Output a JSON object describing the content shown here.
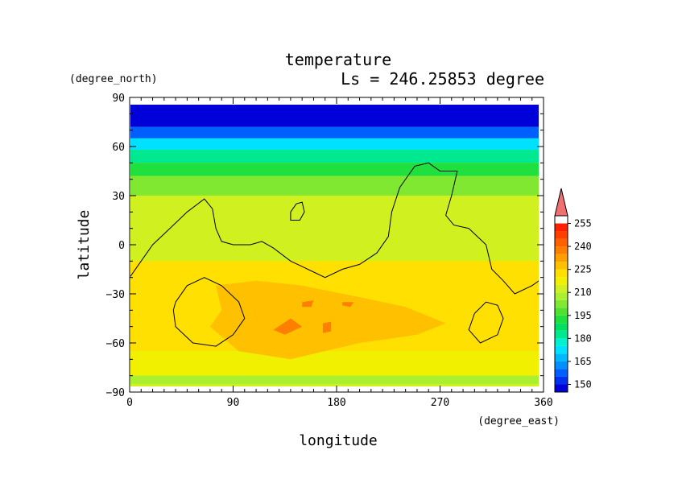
{
  "chart_data": {
    "type": "heatmap",
    "title": "temperature",
    "subtitle": "Ls = 246.25853 degree",
    "xlabel": "longitude",
    "ylabel": "latitude",
    "x_units": "(degree_east)",
    "y_units": "(degree_north)",
    "xlim": [
      0,
      360
    ],
    "ylim": [
      -90,
      90
    ],
    "x_ticks": [
      0,
      90,
      180,
      270,
      360
    ],
    "x_tick_labels": [
      "0",
      "90",
      "180",
      "270",
      "360"
    ],
    "y_ticks": [
      -90,
      -60,
      -30,
      0,
      30,
      60,
      90
    ],
    "y_tick_labels": [
      "−90",
      "−60",
      "−30",
      "0",
      "30",
      "60",
      "90"
    ],
    "colorbar": {
      "levels": [
        145,
        150,
        155,
        160,
        165,
        170,
        175,
        180,
        185,
        190,
        195,
        200,
        205,
        210,
        215,
        220,
        225,
        230,
        235,
        240,
        245,
        250,
        255,
        260
      ],
      "colors": [
        "#0000d8",
        "#0030f0",
        "#0060ff",
        "#0090ff",
        "#00b8ff",
        "#00e0ff",
        "#00f0d0",
        "#00e890",
        "#00e060",
        "#20e040",
        "#50e030",
        "#80e830",
        "#a8f030",
        "#d0f020",
        "#f0f000",
        "#ffe000",
        "#ffc000",
        "#ffa000",
        "#ff8000",
        "#ff6000",
        "#ff4000",
        "#ff2000",
        "#f07070"
      ],
      "tick_labels": [
        "150",
        "165",
        "180",
        "195",
        "210",
        "225",
        "240",
        "255"
      ],
      "tick_values": [
        150,
        165,
        180,
        195,
        210,
        225,
        240,
        255
      ]
    },
    "field_bands": [
      {
        "lat_max": 90,
        "lat_min": 72,
        "value": 148
      },
      {
        "lat_max": 72,
        "lat_min": 65,
        "value": 158
      },
      {
        "lat_max": 65,
        "lat_min": 58,
        "value": 170
      },
      {
        "lat_max": 58,
        "lat_min": 50,
        "value": 182
      },
      {
        "lat_max": 50,
        "lat_min": 42,
        "value": 192
      },
      {
        "lat_max": 42,
        "lat_min": 30,
        "value": 204
      },
      {
        "lat_max": 30,
        "lat_min": -10,
        "value": 212
      },
      {
        "lat_max": -10,
        "lat_min": -65,
        "value": 222
      },
      {
        "lat_max": -65,
        "lat_min": -80,
        "value": 218
      },
      {
        "lat_max": -80,
        "lat_min": -85,
        "value": 208
      }
    ],
    "warm_region": [
      [
        75,
        -25
      ],
      [
        110,
        -22
      ],
      [
        150,
        -25
      ],
      [
        200,
        -32
      ],
      [
        240,
        -38
      ],
      [
        275,
        -48
      ],
      [
        250,
        -55
      ],
      [
        200,
        -60
      ],
      [
        140,
        -70
      ],
      [
        95,
        -65
      ],
      [
        70,
        -50
      ],
      [
        80,
        -40
      ]
    ],
    "warmer_spots": [
      [
        [
          125,
          -52
        ],
        [
          140,
          -45
        ],
        [
          150,
          -50
        ],
        [
          135,
          -55
        ]
      ],
      [
        [
          168,
          -48
        ],
        [
          175,
          -47
        ],
        [
          175,
          -53
        ],
        [
          168,
          -54
        ]
      ],
      [
        [
          150,
          -35
        ],
        [
          160,
          -34
        ],
        [
          158,
          -38
        ],
        [
          150,
          -38
        ]
      ],
      [
        [
          185,
          -35
        ],
        [
          195,
          -35
        ],
        [
          192,
          -38
        ],
        [
          185,
          -37
        ]
      ]
    ],
    "contour_lines": [
      [
        [
          0,
          -20
        ],
        [
          10,
          -10
        ],
        [
          20,
          0
        ],
        [
          35,
          10
        ],
        [
          50,
          20
        ],
        [
          65,
          28
        ],
        [
          72,
          22
        ],
        [
          75,
          10
        ],
        [
          80,
          2
        ],
        [
          90,
          0
        ],
        [
          105,
          0
        ],
        [
          115,
          2
        ],
        [
          125,
          -2
        ],
        [
          140,
          -10
        ],
        [
          155,
          -15
        ],
        [
          170,
          -20
        ],
        [
          185,
          -15
        ],
        [
          200,
          -12
        ],
        [
          215,
          -5
        ],
        [
          225,
          5
        ],
        [
          228,
          20
        ],
        [
          235,
          35
        ],
        [
          248,
          48
        ],
        [
          260,
          50
        ],
        [
          270,
          45
        ],
        [
          285,
          45
        ],
        [
          280,
          30
        ],
        [
          275,
          18
        ],
        [
          282,
          12
        ],
        [
          295,
          10
        ],
        [
          310,
          0
        ],
        [
          315,
          -15
        ],
        [
          325,
          -22
        ],
        [
          335,
          -30
        ],
        [
          350,
          -25
        ],
        [
          360,
          -20
        ]
      ],
      [
        [
          40,
          -35
        ],
        [
          50,
          -25
        ],
        [
          65,
          -20
        ],
        [
          80,
          -25
        ],
        [
          95,
          -35
        ],
        [
          100,
          -45
        ],
        [
          90,
          -55
        ],
        [
          75,
          -62
        ],
        [
          55,
          -60
        ],
        [
          40,
          -50
        ],
        [
          38,
          -40
        ],
        [
          40,
          -35
        ]
      ],
      [
        [
          300,
          -42
        ],
        [
          310,
          -35
        ],
        [
          320,
          -37
        ],
        [
          325,
          -45
        ],
        [
          320,
          -55
        ],
        [
          305,
          -60
        ],
        [
          295,
          -52
        ],
        [
          300,
          -42
        ]
      ],
      [
        [
          140,
          20
        ],
        [
          145,
          25
        ],
        [
          150,
          26
        ],
        [
          152,
          20
        ],
        [
          148,
          15
        ],
        [
          140,
          15
        ],
        [
          140,
          20
        ]
      ]
    ]
  }
}
